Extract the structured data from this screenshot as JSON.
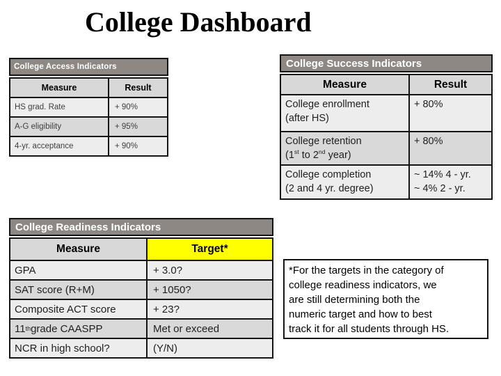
{
  "slide": {
    "title": "College Dashboard"
  },
  "colors": {
    "band_bg": "#8d8883",
    "band_text": "#ffffff",
    "border": "#141414",
    "col_header_bg": "#d8d8d8",
    "row_light": "#ededed",
    "row_dark": "#d9d9d9",
    "target_header_bg": "#ffff00"
  },
  "access_table": {
    "title": "College Access Indicators",
    "columns": {
      "measure": "Measure",
      "result": "Result"
    },
    "rows": [
      {
        "measure": "HS grad. Rate",
        "result": "+ 90%"
      },
      {
        "measure": "A-G eligibility",
        "result": "+ 95%"
      },
      {
        "measure": "4-yr. acceptance",
        "result": "+ 90%"
      }
    ]
  },
  "success_table": {
    "title": "College Success Indicators",
    "columns": {
      "measure": "Measure",
      "result": "Result"
    },
    "rows": [
      {
        "measure_line1": "College enrollment",
        "measure_line2": [
          {
            "t": "(after HS)"
          }
        ],
        "result_lines": [
          "+ 80%"
        ]
      },
      {
        "measure_line1": "College retention",
        "measure_line2": [
          {
            "t": "(1"
          },
          {
            "t": "st",
            "sup": true
          },
          {
            "t": " to 2"
          },
          {
            "t": "nd",
            "sup": true
          },
          {
            "t": " year)"
          }
        ],
        "result_lines": [
          "+ 80%"
        ]
      },
      {
        "measure_line1": "College completion",
        "measure_line2": [
          {
            "t": "(2 and 4 yr. degree)"
          }
        ],
        "result_lines": [
          "~ 14% 4 - yr.",
          "~ 4% 2 - yr."
        ]
      }
    ]
  },
  "readiness_table": {
    "title": "College Readiness Indicators",
    "columns": {
      "measure": "Measure",
      "target": "Target*"
    },
    "rows": [
      {
        "measure": [
          {
            "t": "GPA"
          }
        ],
        "target": "+ 3.0?"
      },
      {
        "measure": [
          {
            "t": "SAT score (R+M)"
          }
        ],
        "target": "+ 1050?"
      },
      {
        "measure": [
          {
            "t": "Composite ACT score"
          }
        ],
        "target": "+ 23?"
      },
      {
        "measure": [
          {
            "t": "11"
          },
          {
            "t": "th",
            "sup": true
          },
          {
            "t": " grade CAASPP"
          }
        ],
        "target": "Met or exceed"
      },
      {
        "measure": [
          {
            "t": "NCR in high school?"
          }
        ],
        "target": "(Y/N)"
      }
    ]
  },
  "footnote": {
    "lines": [
      "*For the targets in the category of",
      "college readiness indicators, we",
      "are still determining both the",
      "numeric target and how to best",
      "track it for all students through HS."
    ]
  }
}
